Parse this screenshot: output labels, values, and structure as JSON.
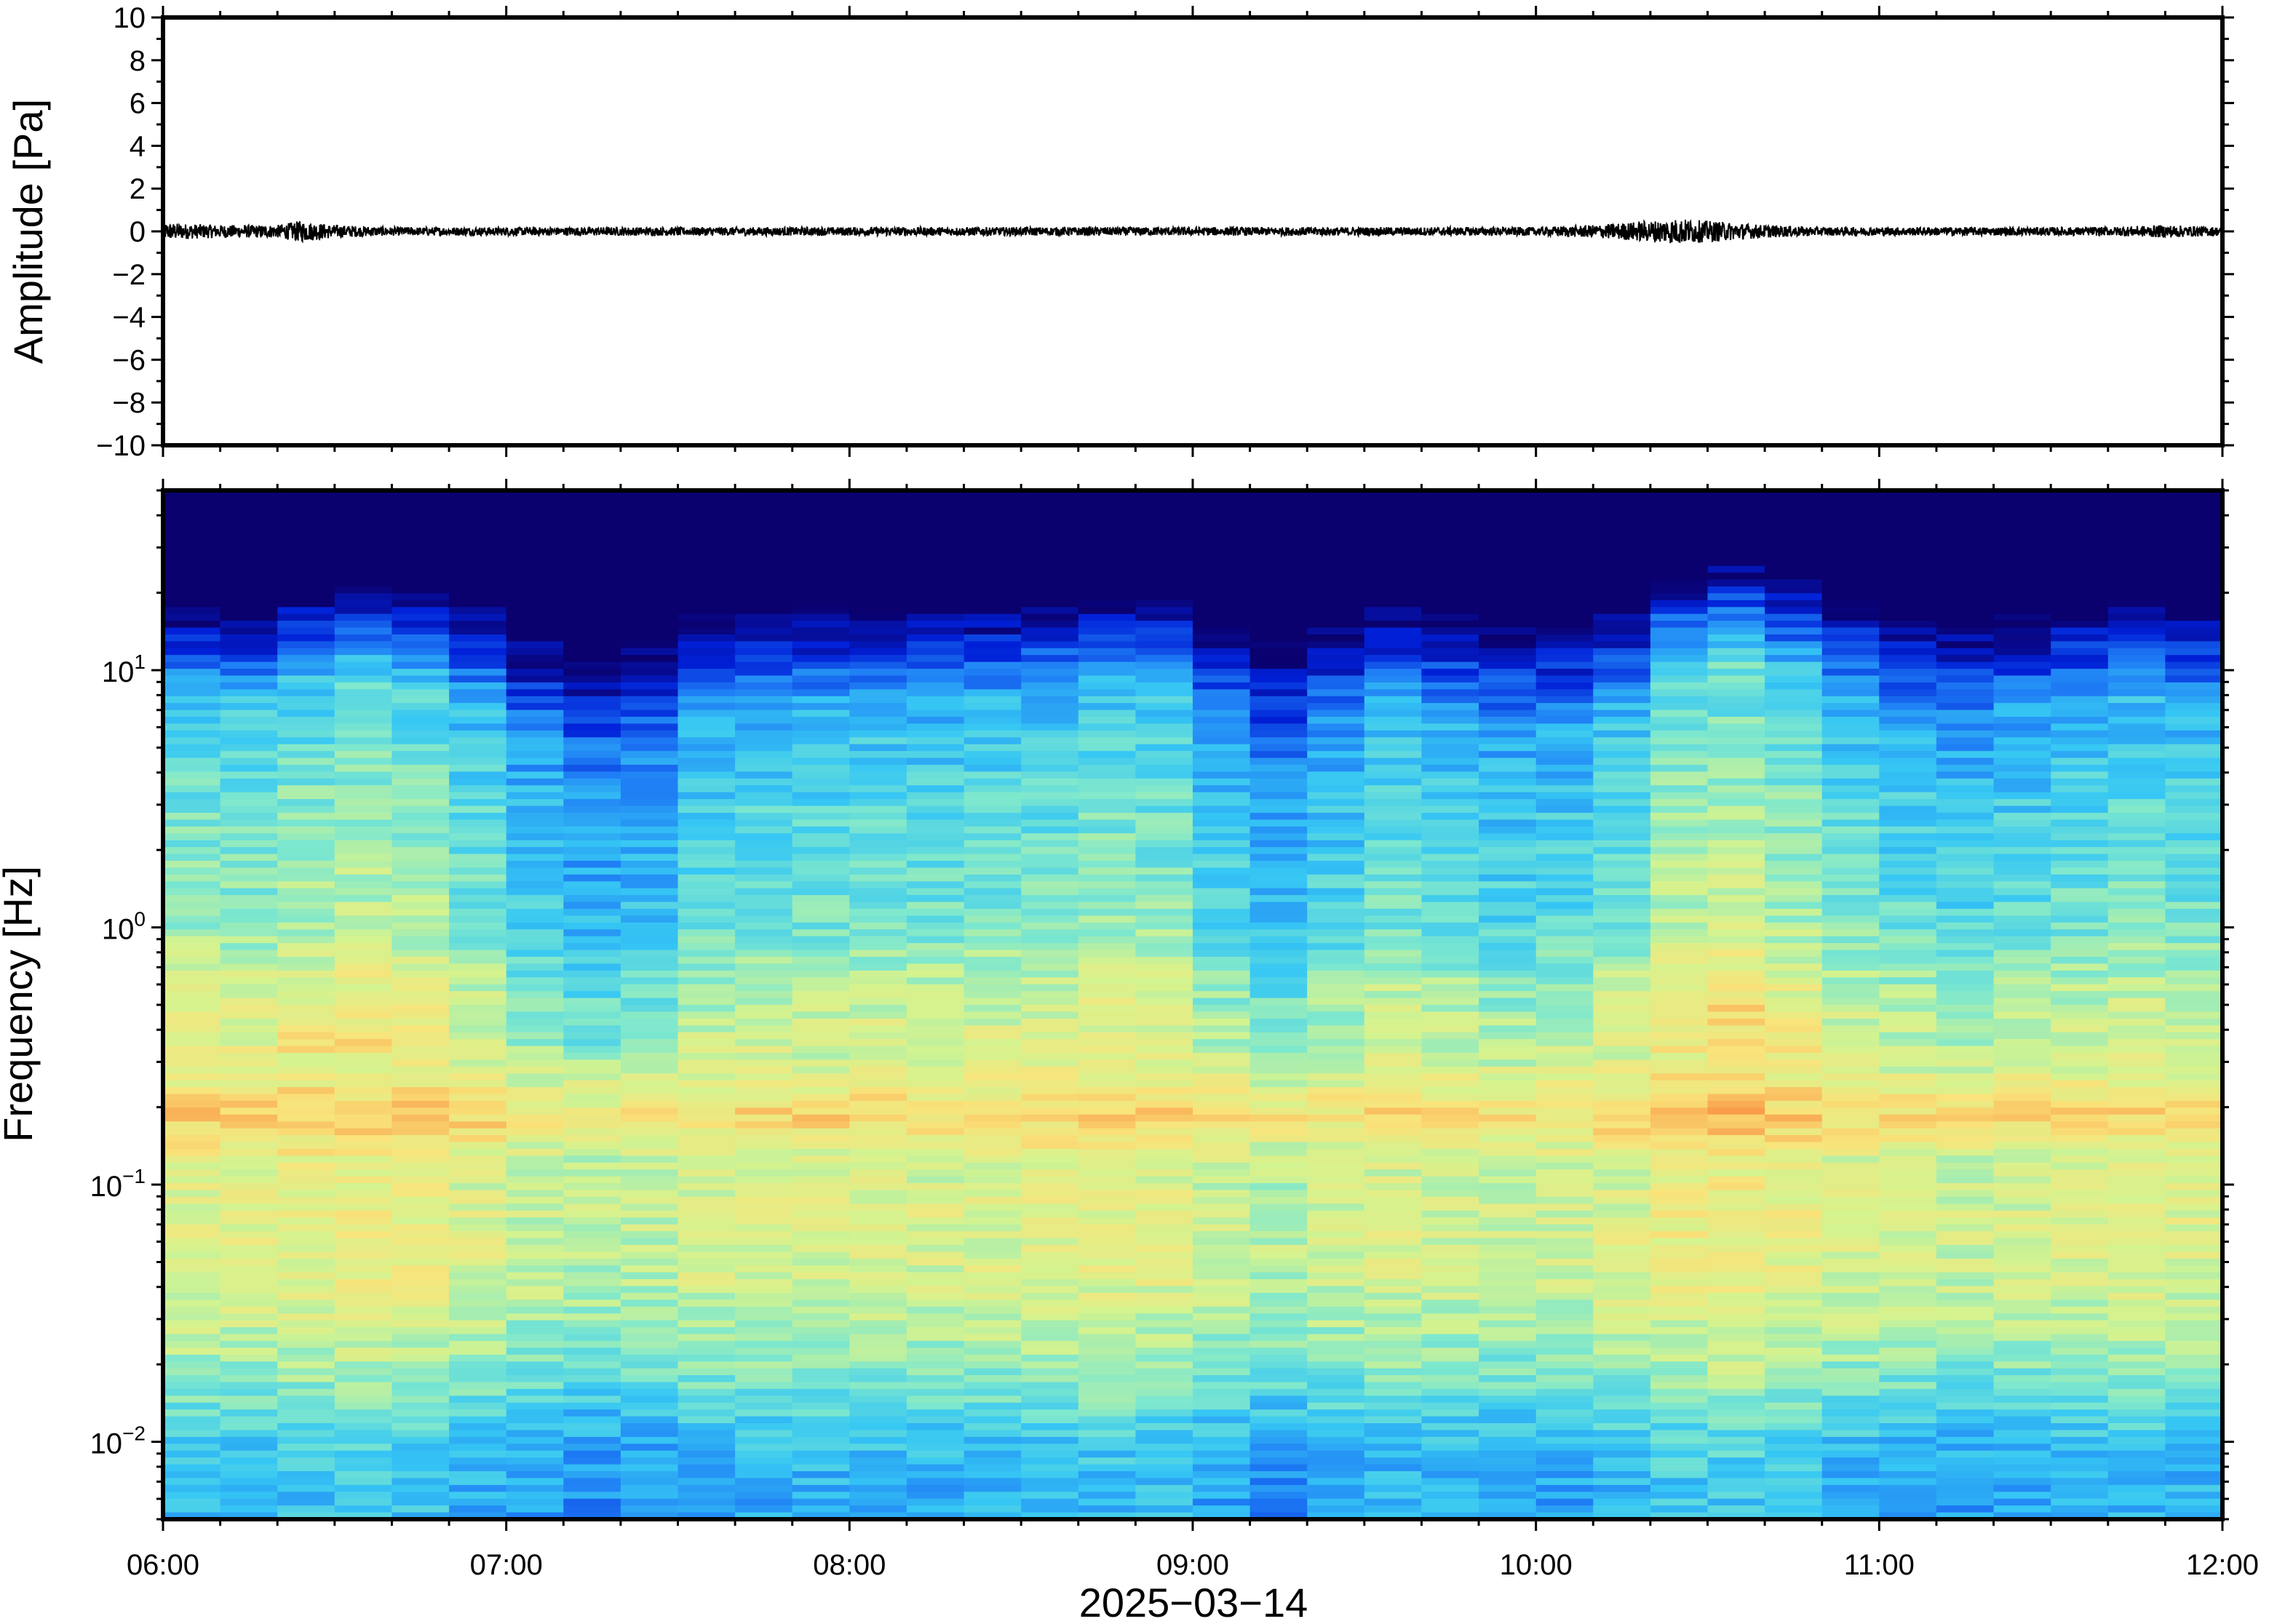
{
  "chart_data": [
    {
      "type": "line",
      "panel": "waveform",
      "ylabel": "Amplitude [Pa]",
      "ylim": [
        -10,
        10
      ],
      "yticks": [
        10,
        8,
        6,
        4,
        2,
        0,
        -2,
        -4,
        -6,
        -8,
        -10
      ],
      "ytick_labels": [
        "10",
        "8",
        "6",
        "4",
        "2",
        "0",
        "−2",
        "−4",
        "−6",
        "−8",
        "−10"
      ],
      "xlim": [
        "06:00",
        "12:00"
      ],
      "series": [
        {
          "x": [
            "06:00",
            "06:10",
            "06:20",
            "06:24",
            "06:30",
            "06:40",
            "06:50",
            "07:00",
            "07:10",
            "07:20",
            "07:30",
            "07:40",
            "07:50",
            "08:00",
            "08:10",
            "08:20",
            "08:30",
            "08:40",
            "08:50",
            "09:00",
            "09:10",
            "09:20",
            "09:30",
            "09:40",
            "09:50",
            "10:00",
            "10:10",
            "10:20",
            "10:25",
            "10:30",
            "10:40",
            "10:50",
            "11:00",
            "11:10",
            "11:20",
            "11:30",
            "11:40",
            "11:50",
            "12:00"
          ],
          "values": [
            0.4,
            0.3,
            0.3,
            0.5,
            0.3,
            0.2,
            0.2,
            0.2,
            0.2,
            0.2,
            0.2,
            0.2,
            0.2,
            0.2,
            0.2,
            0.2,
            0.2,
            0.2,
            0.2,
            0.2,
            0.2,
            0.2,
            0.2,
            0.2,
            0.2,
            0.2,
            0.3,
            0.5,
            0.6,
            0.5,
            0.3,
            0.2,
            0.2,
            0.2,
            0.2,
            0.2,
            0.2,
            0.3,
            0.2
          ]
        }
      ]
    },
    {
      "type": "heatmap",
      "panel": "spectrogram",
      "ylabel": "Frequency [Hz]",
      "xlabel": "2025−03−14",
      "yscale": "log",
      "ylim": [
        0.005,
        50
      ],
      "yticks": [
        {
          "value": 10,
          "base": "10",
          "exp": "1"
        },
        {
          "value": 1,
          "base": "10",
          "exp": "0"
        },
        {
          "value": 0.1,
          "base": "10",
          "exp": "−1"
        },
        {
          "value": 0.01,
          "base": "10",
          "exp": "−2"
        }
      ],
      "xlim": [
        "06:00",
        "12:00"
      ],
      "xticks": [
        "06:00",
        "07:00",
        "08:00",
        "09:00",
        "10:00",
        "11:00",
        "12:00"
      ],
      "colormap": "jet",
      "colormap_stops": [
        "#0a006e",
        "#0020d8",
        "#1f7ff5",
        "#36c7f4",
        "#7fe8cd",
        "#d4f38f",
        "#f9e37a",
        "#f9a04a",
        "#e9473a"
      ],
      "time_columns": [
        "06:00",
        "06:10",
        "06:20",
        "06:30",
        "06:40",
        "06:50",
        "07:00",
        "07:10",
        "07:20",
        "07:30",
        "07:40",
        "07:50",
        "08:00",
        "08:10",
        "08:20",
        "08:30",
        "08:40",
        "08:50",
        "09:00",
        "09:10",
        "09:20",
        "09:30",
        "09:40",
        "09:50",
        "10:00",
        "10:10",
        "10:20",
        "10:30",
        "10:40",
        "10:50",
        "11:00",
        "11:10",
        "11:20",
        "11:30",
        "11:40",
        "11:50"
      ],
      "upper_frequency_edge_hz": [
        15,
        15,
        17,
        18,
        17,
        15,
        12,
        10,
        11,
        14,
        14,
        15,
        15,
        15,
        15,
        16,
        17,
        16,
        13,
        11,
        13,
        15,
        14,
        13,
        13,
        15,
        20,
        22,
        19,
        16,
        14,
        13,
        14,
        15,
        16,
        15
      ],
      "profile": [
        {
          "freq_hz": 0.006,
          "level": 0.32
        },
        {
          "freq_hz": 0.01,
          "level": 0.36
        },
        {
          "freq_hz": 0.02,
          "level": 0.52
        },
        {
          "freq_hz": 0.04,
          "level": 0.62
        },
        {
          "freq_hz": 0.07,
          "level": 0.64
        },
        {
          "freq_hz": 0.12,
          "level": 0.62
        },
        {
          "freq_hz": 0.18,
          "level": 0.76
        },
        {
          "freq_hz": 0.3,
          "level": 0.62
        },
        {
          "freq_hz": 0.6,
          "level": 0.55
        },
        {
          "freq_hz": 1.0,
          "level": 0.46
        },
        {
          "freq_hz": 3.0,
          "level": 0.4
        },
        {
          "freq_hz": 8.0,
          "level": 0.3
        }
      ],
      "column_activity": [
        0.06,
        0.05,
        0.08,
        0.1,
        0.08,
        0.03,
        -0.04,
        -0.08,
        -0.06,
        0.0,
        0.02,
        0.02,
        0.03,
        0.02,
        0.03,
        0.04,
        0.06,
        0.05,
        -0.02,
        -0.07,
        -0.02,
        0.02,
        0.0,
        -0.02,
        -0.01,
        0.03,
        0.1,
        0.12,
        0.08,
        0.03,
        0.0,
        -0.02,
        0.0,
        0.02,
        0.03,
        0.02
      ]
    }
  ]
}
